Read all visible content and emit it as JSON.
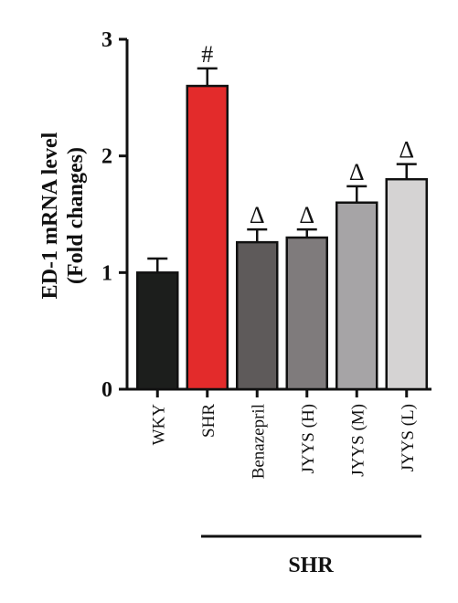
{
  "chart_data": {
    "type": "bar",
    "categories": [
      "WKY",
      "SHR",
      "Benazepril",
      "JYYS (H)",
      "JYYS (M)",
      "JYYS (L)"
    ],
    "values": [
      1.0,
      2.6,
      1.26,
      1.3,
      1.6,
      1.8
    ],
    "errors": [
      0.12,
      0.15,
      0.11,
      0.07,
      0.14,
      0.13
    ],
    "colors": [
      "#1c1e1c",
      "#e32b2b",
      "#5e5a5a",
      "#7f7b7c",
      "#a6a4a6",
      "#d5d3d3"
    ],
    "annotations": [
      "",
      "#",
      "Δ",
      "Δ",
      "Δ",
      "Δ"
    ],
    "ylabel_line1": "ED-1 mRNA level",
    "ylabel_line2": "(Fold changes)",
    "ylim": [
      0,
      3
    ],
    "yticks": [
      "0",
      "1",
      "2",
      "3"
    ],
    "group_label": "SHR",
    "grid": false
  }
}
